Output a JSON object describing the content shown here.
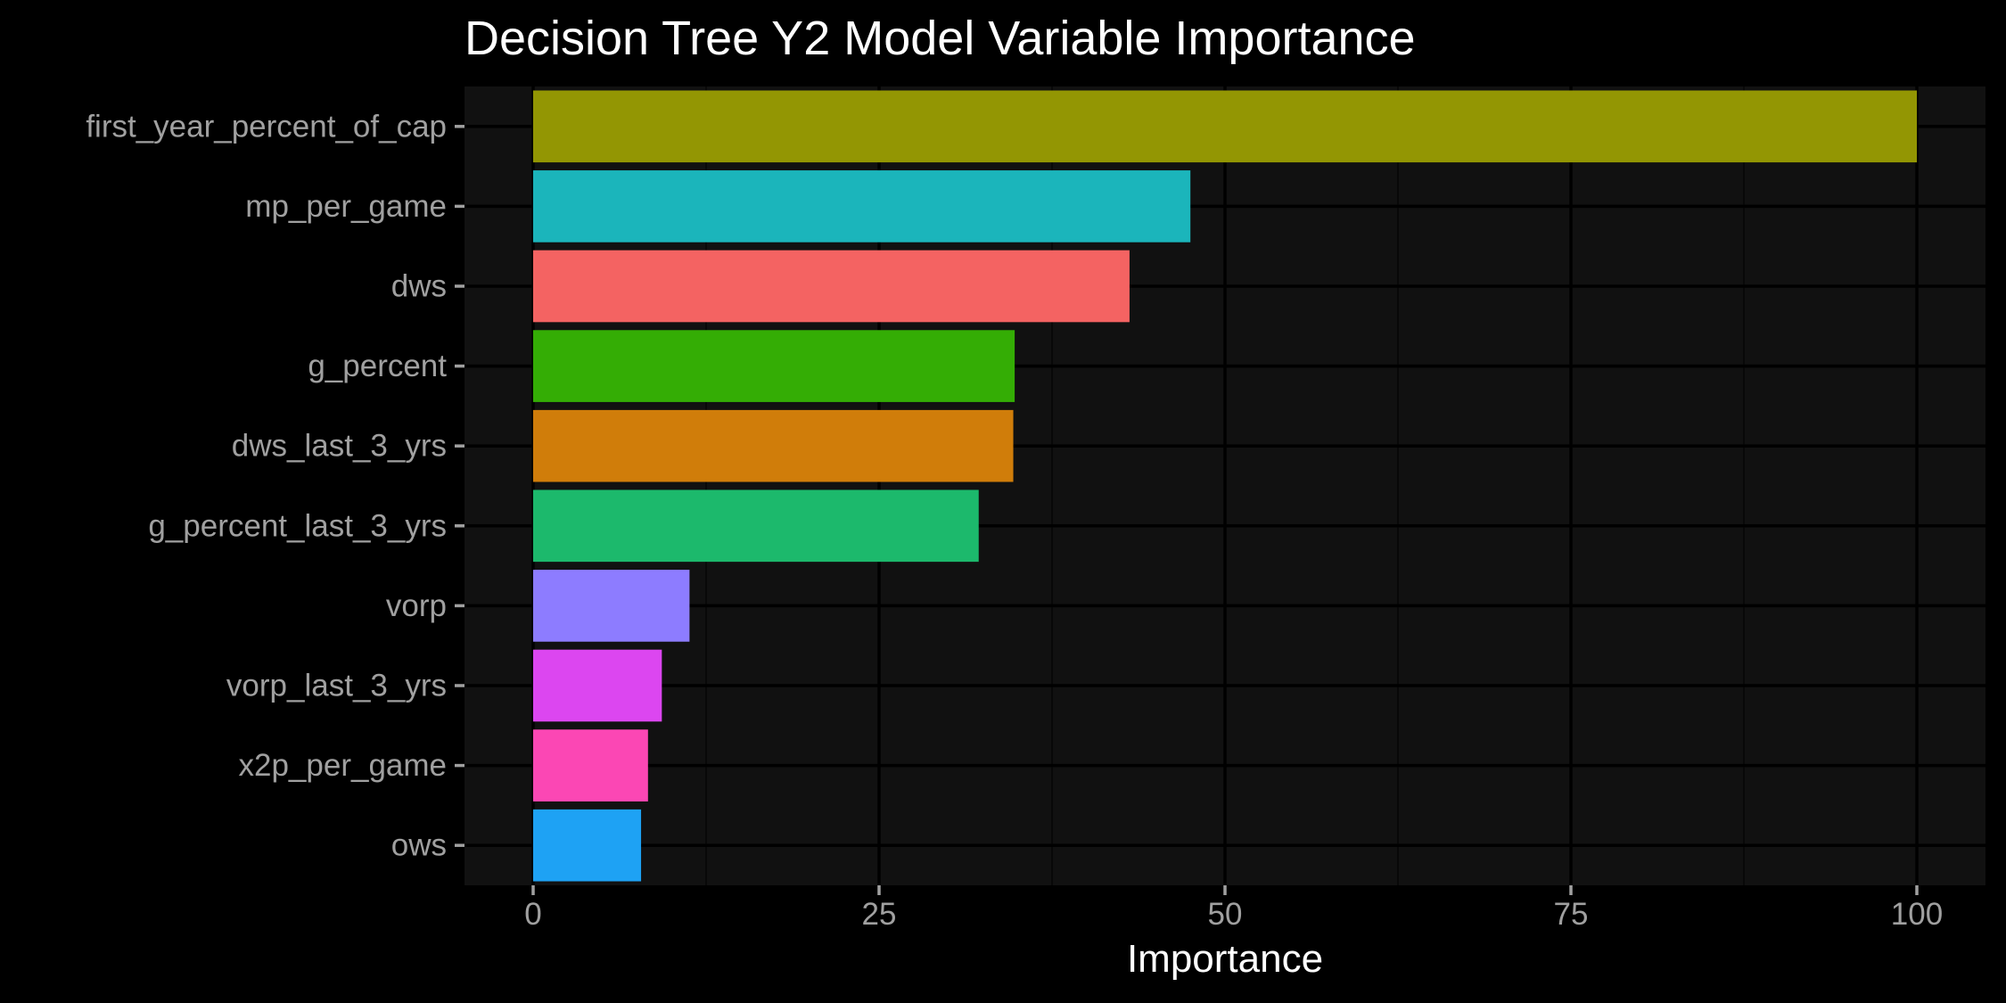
{
  "chart_data": {
    "type": "bar",
    "orientation": "horizontal",
    "title": "Decision Tree Y2 Model Variable Importance",
    "xlabel": "Importance",
    "ylabel": "",
    "xlim": [
      -10,
      105
    ],
    "x_ticks": [
      0,
      25,
      50,
      75,
      100
    ],
    "x_tick_labels": [
      "0",
      "25",
      "50",
      "75",
      "100"
    ],
    "grid": true,
    "legend": "none",
    "categories": [
      "first_year_percent_of_cap",
      "mp_per_game",
      "dws",
      "g_percent",
      "dws_last_3_yrs",
      "g_percent_last_3_yrs",
      "vorp",
      "vorp_last_3_yrs",
      "x2p_per_game",
      "ows"
    ],
    "values": [
      100,
      47.5,
      43.1,
      34.8,
      34.7,
      32.2,
      11.3,
      9.3,
      8.3,
      7.8
    ],
    "colors": [
      "#939603",
      "#1bb5bb",
      "#f46362",
      "#34ad05",
      "#d07d0a",
      "#1cb96c",
      "#8d7cff",
      "#dc46f0",
      "#fb47b4",
      "#1ea2f4"
    ]
  },
  "theme": {
    "background": "#000000",
    "panel": "#111111",
    "grid_major": "#000000",
    "grid_minor": "#080808",
    "text": "#ffffff",
    "tick_text": "#a0a0a0"
  }
}
